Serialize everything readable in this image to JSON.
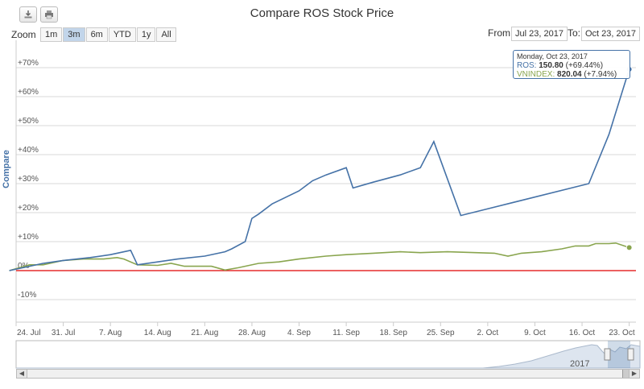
{
  "title": "Compare ROS Stock Price",
  "zoom": {
    "label": "Zoom",
    "buttons": [
      "1m",
      "3m",
      "6m",
      "YTD",
      "1y",
      "All"
    ],
    "active": "3m"
  },
  "range": {
    "from_label": "From:",
    "from_value": "Jul 23, 2017",
    "to_label": "To:",
    "to_value": "Oct 23, 2017"
  },
  "toolbar": {
    "download_icon": "download-icon",
    "print_icon": "print-icon"
  },
  "tooltip": {
    "date": "Monday, Oct 23, 2017",
    "ros_label": "ROS",
    "ros_value": "150.80",
    "ros_change": "(+69.44%)",
    "vni_label": "VNINDEX",
    "vni_value": "820.04",
    "vni_change": "(+7.94%)"
  },
  "navigator": {
    "year_label": "2017"
  },
  "colors": {
    "ros": "#4572a7",
    "vnindex": "#89a54e",
    "zero_line": "#e00000"
  },
  "chart_data": {
    "type": "line",
    "ylabel": "Compare",
    "ylim": [
      -10,
      75
    ],
    "yticks": [
      "-10%",
      "0%",
      "+10%",
      "+20%",
      "+30%",
      "+40%",
      "+50%",
      "+60%",
      "+70%"
    ],
    "ytick_values": [
      -10,
      0,
      10,
      20,
      30,
      40,
      50,
      60,
      70
    ],
    "xlim": [
      "2017-07-24",
      "2017-10-24"
    ],
    "xticks": [
      {
        "date": "2017-07-24",
        "label": "24. Jul"
      },
      {
        "date": "2017-07-31",
        "label": "31. Jul"
      },
      {
        "date": "2017-08-07",
        "label": "7. Aug"
      },
      {
        "date": "2017-08-14",
        "label": "14. Aug"
      },
      {
        "date": "2017-08-21",
        "label": "21. Aug"
      },
      {
        "date": "2017-08-28",
        "label": "28. Aug"
      },
      {
        "date": "2017-09-04",
        "label": "4. Sep"
      },
      {
        "date": "2017-09-11",
        "label": "11. Sep"
      },
      {
        "date": "2017-09-18",
        "label": "18. Sep"
      },
      {
        "date": "2017-09-25",
        "label": "25. Sep"
      },
      {
        "date": "2017-10-02",
        "label": "2. Oct"
      },
      {
        "date": "2017-10-09",
        "label": "9. Oct"
      },
      {
        "date": "2017-10-16",
        "label": "16. Oct"
      },
      {
        "date": "2017-10-23",
        "label": "23. Oct"
      }
    ],
    "legend": "none",
    "series": [
      {
        "name": "ROS",
        "data": [
          [
            "2017-07-23",
            0
          ],
          [
            "2017-07-26",
            1.5
          ],
          [
            "2017-07-28",
            2.5
          ],
          [
            "2017-07-31",
            3.5
          ],
          [
            "2017-08-04",
            4.5
          ],
          [
            "2017-08-07",
            5.5
          ],
          [
            "2017-08-10",
            7
          ],
          [
            "2017-08-11",
            2
          ],
          [
            "2017-08-14",
            3
          ],
          [
            "2017-08-17",
            4
          ],
          [
            "2017-08-21",
            5
          ],
          [
            "2017-08-24",
            6.5
          ],
          [
            "2017-08-25",
            7.5
          ],
          [
            "2017-08-27",
            10
          ],
          [
            "2017-08-28",
            18
          ],
          [
            "2017-08-29",
            19.5
          ],
          [
            "2017-08-31",
            23
          ],
          [
            "2017-09-04",
            27.5
          ],
          [
            "2017-09-06",
            31
          ],
          [
            "2017-09-08",
            33
          ],
          [
            "2017-09-11",
            35.5
          ],
          [
            "2017-09-12",
            28.5
          ],
          [
            "2017-09-15",
            30.5
          ],
          [
            "2017-09-19",
            33
          ],
          [
            "2017-09-22",
            35.5
          ],
          [
            "2017-09-24",
            44.5
          ],
          [
            "2017-09-28",
            19
          ],
          [
            "2017-10-17",
            30
          ],
          [
            "2017-10-20",
            47
          ],
          [
            "2017-10-23",
            69.44
          ]
        ]
      },
      {
        "name": "VNINDEX",
        "data": [
          [
            "2017-07-23",
            0
          ],
          [
            "2017-07-26",
            2
          ],
          [
            "2017-07-28",
            2
          ],
          [
            "2017-07-31",
            3.5
          ],
          [
            "2017-08-03",
            4
          ],
          [
            "2017-08-06",
            4
          ],
          [
            "2017-08-08",
            4.5
          ],
          [
            "2017-08-09",
            4
          ],
          [
            "2017-08-11",
            2
          ],
          [
            "2017-08-14",
            1.8
          ],
          [
            "2017-08-16",
            2.5
          ],
          [
            "2017-08-18",
            1.5
          ],
          [
            "2017-08-22",
            1.5
          ],
          [
            "2017-08-24",
            0.2
          ],
          [
            "2017-08-26",
            1
          ],
          [
            "2017-08-29",
            2.5
          ],
          [
            "2017-09-01",
            3
          ],
          [
            "2017-09-04",
            4
          ],
          [
            "2017-09-08",
            5
          ],
          [
            "2017-09-11",
            5.5
          ],
          [
            "2017-09-15",
            6
          ],
          [
            "2017-09-19",
            6.5
          ],
          [
            "2017-09-22",
            6.2
          ],
          [
            "2017-09-26",
            6.5
          ],
          [
            "2017-10-03",
            6
          ],
          [
            "2017-10-05",
            5
          ],
          [
            "2017-10-07",
            6
          ],
          [
            "2017-10-10",
            6.5
          ],
          [
            "2017-10-13",
            7.5
          ],
          [
            "2017-10-15",
            8.5
          ],
          [
            "2017-10-17",
            8.5
          ],
          [
            "2017-10-18",
            9.3
          ],
          [
            "2017-10-20",
            9.3
          ],
          [
            "2017-10-21",
            9.5
          ],
          [
            "2017-10-23",
            7.94
          ]
        ]
      }
    ]
  }
}
